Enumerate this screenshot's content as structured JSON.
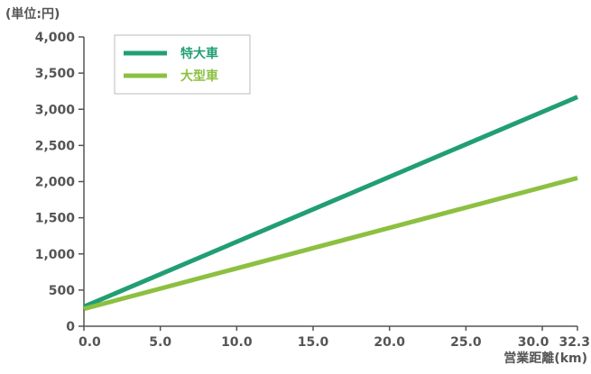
{
  "chart_data": {
    "type": "line",
    "y_unit_label": "(単位:円)",
    "xlabel": "営業距離(km)",
    "xlim": [
      0,
      32.3
    ],
    "ylim": [
      0,
      4000
    ],
    "x_ticks": [
      0,
      5,
      10,
      15,
      20,
      25,
      30,
      32.3
    ],
    "x_tick_labels": [
      "0.0",
      "5.0",
      "10.0",
      "15.0",
      "20.0",
      "25.0",
      "30.0",
      "32.3"
    ],
    "y_ticks": [
      0,
      500,
      1000,
      1500,
      2000,
      2500,
      3000,
      3500,
      4000
    ],
    "y_tick_labels": [
      "0",
      "500",
      "1,000",
      "1,500",
      "2,000",
      "2,500",
      "3,000",
      "3,500",
      "4,000"
    ],
    "grid": false,
    "legend_position": "top-left",
    "series": [
      {
        "name": "特大車",
        "color": "#219e74",
        "x": [
          0,
          32.3
        ],
        "y": [
          270,
          3170
        ]
      },
      {
        "name": "大型車",
        "color": "#8cc041",
        "x": [
          0,
          32.3
        ],
        "y": [
          240,
          2050
        ]
      }
    ]
  }
}
